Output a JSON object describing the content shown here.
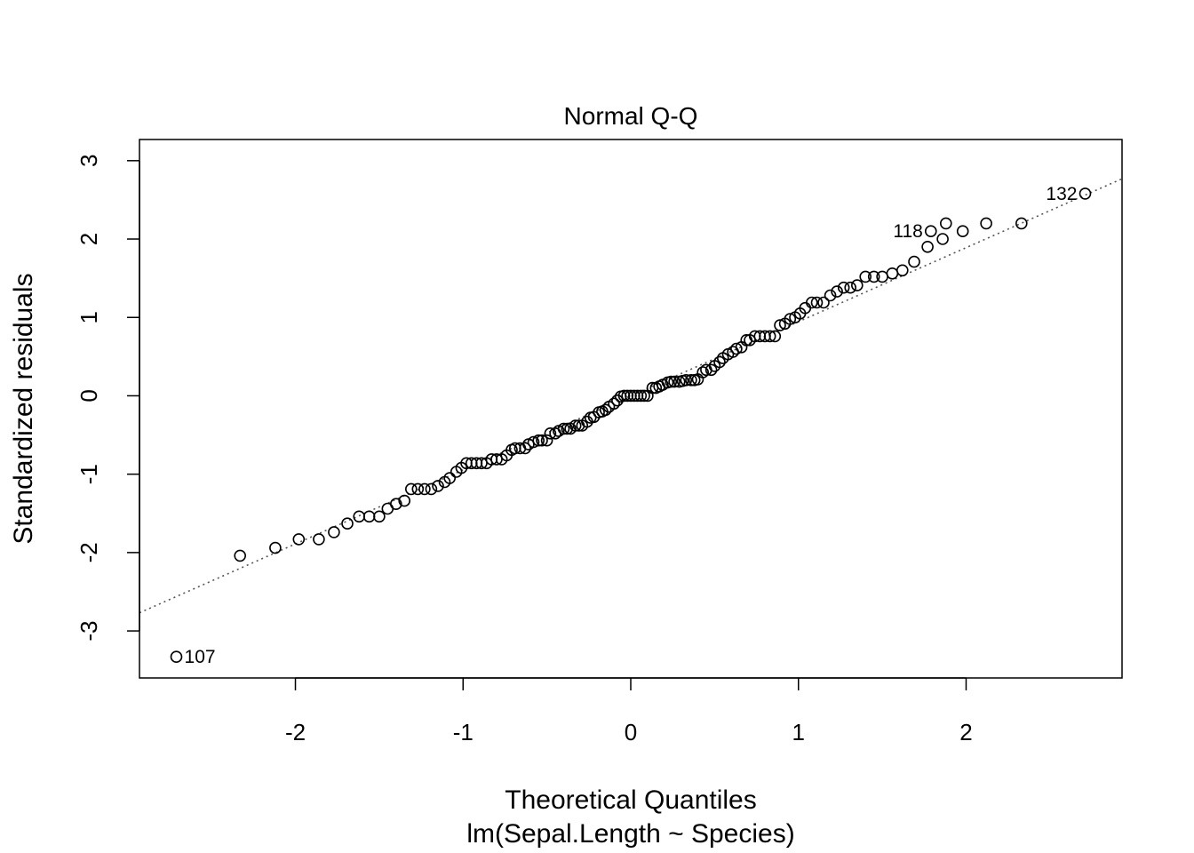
{
  "chart_data": {
    "type": "scatter",
    "title": "Normal Q-Q",
    "xlabel": "Theoretical Quantiles",
    "xlabel_sub": "lm(Sepal.Length ~ Species)",
    "ylabel": "Standardized residuals",
    "xlim": [
      -2.93,
      2.93
    ],
    "ylim": [
      -3.6,
      3.27
    ],
    "x_ticks": [
      -2,
      -1,
      0,
      1,
      2
    ],
    "x_tick_labels": [
      "-2",
      "-1",
      "0",
      "1",
      "2"
    ],
    "y_ticks": [
      -3,
      -2,
      -1,
      0,
      1,
      2,
      3
    ],
    "y_tick_labels": [
      "-3",
      "-2",
      "-1",
      "0",
      "1",
      "2",
      "3"
    ],
    "grid": false,
    "reference_line": {
      "style": "dotted",
      "color": "#555555",
      "slope": 0.945,
      "intercept": 0.0
    },
    "labeled_points": [
      {
        "label": "107",
        "x": -2.71,
        "y": -3.33,
        "position": "right"
      },
      {
        "label": "118",
        "x": 1.79,
        "y": 2.1,
        "position": "left"
      },
      {
        "label": "132",
        "x": 2.71,
        "y": 2.58,
        "position": "left"
      }
    ],
    "points": [
      [
        -2.71,
        -3.33
      ],
      [
        -2.33,
        -2.04
      ],
      [
        -2.12,
        -1.94
      ],
      [
        -1.98,
        -1.83
      ],
      [
        -1.86,
        -1.83
      ],
      [
        -1.77,
        -1.74
      ],
      [
        -1.69,
        -1.63
      ],
      [
        -1.62,
        -1.54
      ],
      [
        -1.56,
        -1.54
      ],
      [
        -1.5,
        -1.54
      ],
      [
        -1.45,
        -1.44
      ],
      [
        -1.4,
        -1.38
      ],
      [
        -1.35,
        -1.34
      ],
      [
        -1.31,
        -1.19
      ],
      [
        -1.27,
        -1.19
      ],
      [
        -1.23,
        -1.19
      ],
      [
        -1.19,
        -1.19
      ],
      [
        -1.15,
        -1.15
      ],
      [
        -1.11,
        -1.1
      ],
      [
        -1.08,
        -1.05
      ],
      [
        -1.04,
        -0.97
      ],
      [
        -1.01,
        -0.92
      ],
      [
        -0.98,
        -0.86
      ],
      [
        -0.95,
        -0.86
      ],
      [
        -0.92,
        -0.86
      ],
      [
        -0.89,
        -0.86
      ],
      [
        -0.86,
        -0.86
      ],
      [
        -0.83,
        -0.81
      ],
      [
        -0.8,
        -0.81
      ],
      [
        -0.77,
        -0.81
      ],
      [
        -0.74,
        -0.76
      ],
      [
        -0.71,
        -0.69
      ],
      [
        -0.69,
        -0.67
      ],
      [
        -0.66,
        -0.67
      ],
      [
        -0.63,
        -0.67
      ],
      [
        -0.61,
        -0.62
      ],
      [
        -0.58,
        -0.59
      ],
      [
        -0.55,
        -0.57
      ],
      [
        -0.53,
        -0.57
      ],
      [
        -0.5,
        -0.57
      ],
      [
        -0.48,
        -0.48
      ],
      [
        -0.45,
        -0.48
      ],
      [
        -0.43,
        -0.45
      ],
      [
        -0.4,
        -0.42
      ],
      [
        -0.38,
        -0.42
      ],
      [
        -0.36,
        -0.42
      ],
      [
        -0.33,
        -0.38
      ],
      [
        -0.31,
        -0.38
      ],
      [
        -0.29,
        -0.38
      ],
      [
        -0.26,
        -0.33
      ],
      [
        -0.24,
        -0.28
      ],
      [
        -0.22,
        -0.27
      ],
      [
        -0.19,
        -0.21
      ],
      [
        -0.17,
        -0.2
      ],
      [
        -0.15,
        -0.18
      ],
      [
        -0.13,
        -0.14
      ],
      [
        -0.1,
        -0.1
      ],
      [
        -0.08,
        -0.06
      ],
      [
        -0.06,
        -0.01
      ],
      [
        -0.04,
        0.0
      ],
      [
        -0.02,
        0.0
      ],
      [
        0.0,
        0.0
      ],
      [
        0.02,
        0.0
      ],
      [
        0.04,
        0.0
      ],
      [
        0.06,
        0.0
      ],
      [
        0.08,
        0.0
      ],
      [
        0.1,
        0.0
      ],
      [
        0.13,
        0.1
      ],
      [
        0.15,
        0.1
      ],
      [
        0.17,
        0.12
      ],
      [
        0.19,
        0.14
      ],
      [
        0.22,
        0.17
      ],
      [
        0.24,
        0.18
      ],
      [
        0.26,
        0.18
      ],
      [
        0.29,
        0.18
      ],
      [
        0.31,
        0.19
      ],
      [
        0.33,
        0.2
      ],
      [
        0.36,
        0.2
      ],
      [
        0.38,
        0.2
      ],
      [
        0.4,
        0.21
      ],
      [
        0.43,
        0.3
      ],
      [
        0.45,
        0.33
      ],
      [
        0.48,
        0.33
      ],
      [
        0.5,
        0.38
      ],
      [
        0.53,
        0.43
      ],
      [
        0.55,
        0.48
      ],
      [
        0.58,
        0.53
      ],
      [
        0.61,
        0.56
      ],
      [
        0.63,
        0.6
      ],
      [
        0.66,
        0.62
      ],
      [
        0.69,
        0.71
      ],
      [
        0.71,
        0.71
      ],
      [
        0.74,
        0.76
      ],
      [
        0.77,
        0.76
      ],
      [
        0.8,
        0.76
      ],
      [
        0.83,
        0.76
      ],
      [
        0.86,
        0.76
      ],
      [
        0.89,
        0.9
      ],
      [
        0.92,
        0.92
      ],
      [
        0.95,
        0.98
      ],
      [
        0.98,
        1.0
      ],
      [
        1.01,
        1.05
      ],
      [
        1.04,
        1.12
      ],
      [
        1.08,
        1.19
      ],
      [
        1.11,
        1.19
      ],
      [
        1.15,
        1.19
      ],
      [
        1.19,
        1.28
      ],
      [
        1.23,
        1.33
      ],
      [
        1.27,
        1.38
      ],
      [
        1.31,
        1.38
      ],
      [
        1.35,
        1.41
      ],
      [
        1.4,
        1.52
      ],
      [
        1.45,
        1.52
      ],
      [
        1.5,
        1.52
      ],
      [
        1.56,
        1.56
      ],
      [
        1.62,
        1.6
      ],
      [
        1.69,
        1.71
      ],
      [
        1.77,
        1.9
      ],
      [
        1.86,
        2.0
      ],
      [
        1.98,
        2.1
      ],
      [
        2.12,
        2.2
      ],
      [
        2.33,
        2.2
      ],
      [
        1.79,
        2.1
      ],
      [
        1.88,
        2.2
      ],
      [
        2.71,
        2.58
      ]
    ]
  }
}
